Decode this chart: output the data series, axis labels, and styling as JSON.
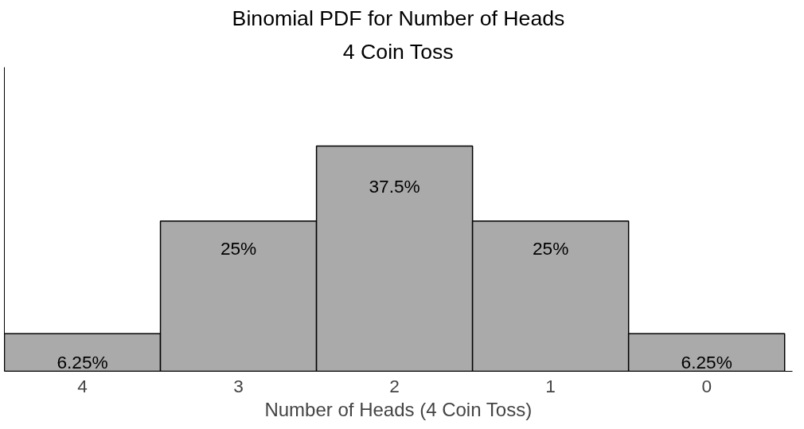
{
  "chart_data": {
    "type": "bar",
    "title": "Binomial PDF for Number of Heads",
    "subtitle": "4 Coin Toss",
    "xlabel": "Number of Heads (4 Coin Toss)",
    "categories": [
      "4",
      "3",
      "2",
      "1",
      "0"
    ],
    "values": [
      6.25,
      25,
      37.5,
      25,
      6.25
    ],
    "color": "#aaaaaa",
    "value_labels": [
      "6.25%",
      "25%",
      "37.5%",
      "25%",
      "6.25%"
    ],
    "grid": false
  }
}
